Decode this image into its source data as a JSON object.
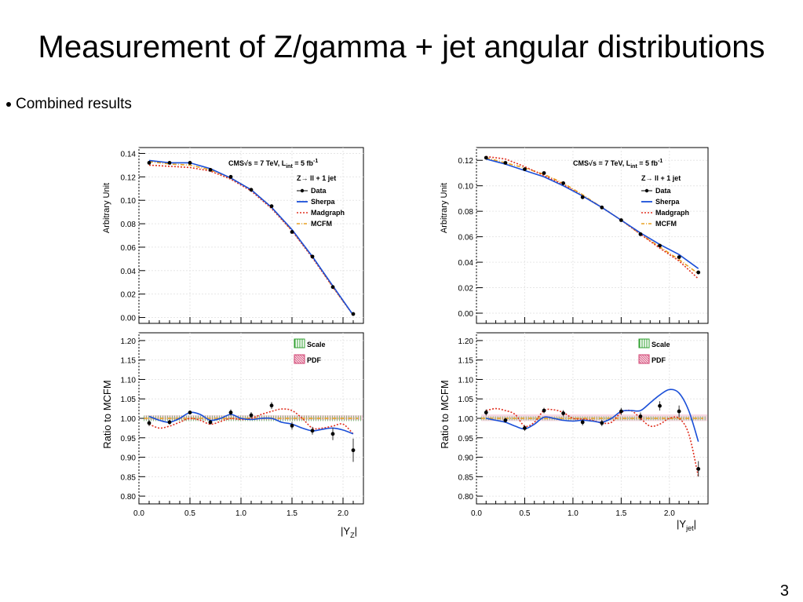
{
  "slide": {
    "title": "Measurement of Z/gamma + jet angular distributions",
    "bullet": "Combined results",
    "page_number": "3"
  },
  "colors": {
    "data": "#000000",
    "sherpa": "#1a4fd8",
    "madgraph": "#e03020",
    "mcfm": "#e8a020",
    "scale_band": "#30a030",
    "pdf_band": "#d04070"
  },
  "chart_data": [
    {
      "type": "line",
      "panel": "left",
      "cms_label": "CMS√s = 7 TeV, L",
      "lumi_sub": "int",
      "lumi_value": " = 5 fb",
      "lumi_sup": "-1",
      "process_label": "Z→ ll + 1 jet",
      "xlabel_main": "|Y",
      "xlabel_sub": "Z",
      "xlabel_end": "|",
      "top": {
        "ylabel": "Arbitrary Unit",
        "xlim": [
          0,
          2.2
        ],
        "ylim": [
          -0.005,
          0.145
        ],
        "yticks": [
          "0.00",
          "0.02",
          "0.04",
          "0.06",
          "0.08",
          "0.10",
          "0.12",
          "0.14"
        ],
        "legend": [
          "Data",
          "Sherpa",
          "Madgraph",
          "MCFM"
        ],
        "data": {
          "x": [
            0.1,
            0.3,
            0.5,
            0.7,
            0.9,
            1.1,
            1.3,
            1.5,
            1.7,
            1.9,
            2.1
          ],
          "y": [
            0.132,
            0.132,
            0.132,
            0.126,
            0.12,
            0.109,
            0.095,
            0.073,
            0.052,
            0.026,
            0.003
          ]
        },
        "sherpa": {
          "x": [
            0.1,
            0.3,
            0.5,
            0.7,
            0.9,
            1.1,
            1.3,
            1.5,
            1.7,
            1.9,
            2.1
          ],
          "y": [
            0.134,
            0.132,
            0.132,
            0.127,
            0.119,
            0.109,
            0.094,
            0.075,
            0.052,
            0.027,
            0.002
          ]
        },
        "madgraph": {
          "x": [
            0.1,
            0.3,
            0.5,
            0.7,
            0.9,
            1.1,
            1.3,
            1.5,
            1.7,
            1.9,
            2.1
          ],
          "y": [
            0.13,
            0.129,
            0.128,
            0.125,
            0.118,
            0.108,
            0.093,
            0.074,
            0.051,
            0.026,
            0.002
          ]
        },
        "mcfm": {
          "x": [
            0.1,
            0.3,
            0.5,
            0.7,
            0.9,
            1.1,
            1.3,
            1.5,
            1.7,
            1.9,
            2.1
          ],
          "y": [
            0.133,
            0.131,
            0.13,
            0.126,
            0.119,
            0.109,
            0.094,
            0.074,
            0.052,
            0.026,
            0.002
          ]
        }
      },
      "bottom": {
        "ylabel": "Ratio to MCFM",
        "xlim": [
          0,
          2.2
        ],
        "ylim": [
          0.78,
          1.22
        ],
        "yticks": [
          "0.80",
          "0.85",
          "0.90",
          "0.95",
          "1.00",
          "1.05",
          "1.10",
          "1.15",
          "1.20"
        ],
        "xticks": [
          "0.0",
          "0.5",
          "1.0",
          "1.5",
          "2.0"
        ],
        "band_legend": [
          "Scale",
          "PDF"
        ],
        "data": {
          "x": [
            0.1,
            0.3,
            0.5,
            0.7,
            0.9,
            1.1,
            1.3,
            1.5,
            1.7,
            1.9,
            2.1
          ],
          "y": [
            0.988,
            0.99,
            1.015,
            0.99,
            1.015,
            1.008,
            1.033,
            0.981,
            0.968,
            0.96,
            0.918
          ],
          "err": [
            0.008,
            0.006,
            0.005,
            0.006,
            0.008,
            0.008,
            0.009,
            0.01,
            0.01,
            0.016,
            0.03
          ]
        },
        "sherpa": {
          "x": [
            0.1,
            0.2,
            0.3,
            0.4,
            0.5,
            0.6,
            0.7,
            0.8,
            0.9,
            1.0,
            1.1,
            1.2,
            1.3,
            1.4,
            1.5,
            1.6,
            1.7,
            1.8,
            1.9,
            2.0,
            2.1
          ],
          "y": [
            1.005,
            0.995,
            0.99,
            1.0,
            1.015,
            1.01,
            0.995,
            1.0,
            1.01,
            1.0,
            0.997,
            1.0,
            1.0,
            0.99,
            0.985,
            0.975,
            0.968,
            0.972,
            0.975,
            0.97,
            0.96
          ]
        },
        "madgraph": {
          "x": [
            0.1,
            0.2,
            0.3,
            0.4,
            0.5,
            0.6,
            0.7,
            0.8,
            0.9,
            1.0,
            1.1,
            1.2,
            1.3,
            1.4,
            1.5,
            1.6,
            1.7,
            1.8,
            1.9,
            2.0,
            2.1
          ],
          "y": [
            0.985,
            0.975,
            0.98,
            0.99,
            1.0,
            0.995,
            0.985,
            0.992,
            1.0,
            0.997,
            1.0,
            1.01,
            1.018,
            1.024,
            1.02,
            1.0,
            0.975,
            0.975,
            0.98,
            0.985,
            0.96
          ]
        },
        "mcfm": {
          "x": [
            0.05,
            2.15
          ],
          "y": [
            1.0,
            1.0
          ]
        },
        "scale_band": [
          0.993,
          1.007
        ],
        "pdf_band": [
          0.995,
          1.008
        ]
      }
    },
    {
      "type": "line",
      "panel": "right",
      "cms_label": "CMS√s = 7 TeV, L",
      "lumi_sub": "int",
      "lumi_value": " = 5 fb",
      "lumi_sup": "-1",
      "process_label": "Z→ ll + 1 jet",
      "xlabel_main": "|Y",
      "xlabel_sub": "jet",
      "xlabel_end": "|",
      "top": {
        "ylabel": "Arbitrary Unit",
        "xlim": [
          0,
          2.4
        ],
        "ylim": [
          -0.008,
          0.13
        ],
        "yticks": [
          "0.00",
          "0.02",
          "0.04",
          "0.06",
          "0.08",
          "0.10",
          "0.12"
        ],
        "legend": [
          "Data",
          "Sherpa",
          "Madgraph",
          "MCFM"
        ],
        "data": {
          "x": [
            0.1,
            0.3,
            0.5,
            0.7,
            0.9,
            1.1,
            1.3,
            1.5,
            1.7,
            1.9,
            2.1,
            2.3
          ],
          "y": [
            0.122,
            0.118,
            0.113,
            0.11,
            0.102,
            0.091,
            0.083,
            0.073,
            0.062,
            0.053,
            0.044,
            0.032
          ]
        },
        "sherpa": {
          "x": [
            0.1,
            0.3,
            0.5,
            0.7,
            0.9,
            1.1,
            1.3,
            1.5,
            1.7,
            1.9,
            2.1,
            2.3
          ],
          "y": [
            0.121,
            0.117,
            0.112,
            0.107,
            0.1,
            0.092,
            0.083,
            0.073,
            0.063,
            0.054,
            0.046,
            0.035
          ]
        },
        "madgraph": {
          "x": [
            0.1,
            0.3,
            0.5,
            0.7,
            0.9,
            1.1,
            1.3,
            1.5,
            1.7,
            1.9,
            2.1,
            2.3
          ],
          "y": [
            0.123,
            0.121,
            0.115,
            0.108,
            0.101,
            0.092,
            0.083,
            0.073,
            0.062,
            0.051,
            0.041,
            0.027
          ]
        },
        "mcfm": {
          "x": [
            0.1,
            0.3,
            0.5,
            0.7,
            0.9,
            1.1,
            1.3,
            1.5,
            1.7,
            1.9,
            2.1,
            2.3
          ],
          "y": [
            0.122,
            0.118,
            0.114,
            0.109,
            0.102,
            0.093,
            0.083,
            0.073,
            0.062,
            0.052,
            0.042,
            0.031
          ]
        }
      },
      "bottom": {
        "ylabel": "Ratio to MCFM",
        "xlim": [
          0,
          2.4
        ],
        "ylim": [
          0.78,
          1.22
        ],
        "yticks": [
          "0.80",
          "0.85",
          "0.90",
          "0.95",
          "1.00",
          "1.05",
          "1.10",
          "1.15",
          "1.20"
        ],
        "xticks": [
          "0.0",
          "0.5",
          "1.0",
          "1.5",
          "2.0"
        ],
        "band_legend": [
          "Scale",
          "PDF"
        ],
        "data": {
          "x": [
            0.1,
            0.3,
            0.5,
            0.7,
            0.9,
            1.1,
            1.3,
            1.5,
            1.7,
            1.9,
            2.1,
            2.3
          ],
          "y": [
            1.015,
            0.995,
            0.975,
            1.02,
            1.013,
            0.99,
            0.988,
            1.018,
            1.005,
            1.032,
            1.018,
            0.87
          ],
          "err": [
            0.008,
            0.006,
            0.007,
            0.007,
            0.008,
            0.008,
            0.008,
            0.009,
            0.01,
            0.012,
            0.015,
            0.02
          ]
        },
        "sherpa": {
          "x": [
            0.1,
            0.2,
            0.3,
            0.4,
            0.5,
            0.6,
            0.7,
            0.8,
            0.9,
            1.0,
            1.1,
            1.2,
            1.3,
            1.4,
            1.5,
            1.6,
            1.7,
            1.8,
            1.9,
            2.0,
            2.1,
            2.2,
            2.3
          ],
          "y": [
            1.0,
            0.995,
            0.99,
            0.98,
            0.973,
            0.985,
            1.003,
            1.0,
            0.995,
            0.993,
            0.995,
            0.993,
            0.99,
            1.0,
            1.018,
            1.02,
            1.02,
            1.04,
            1.06,
            1.074,
            1.065,
            1.02,
            0.94
          ]
        },
        "madgraph": {
          "x": [
            0.1,
            0.2,
            0.3,
            0.4,
            0.5,
            0.6,
            0.7,
            0.8,
            0.9,
            1.0,
            1.1,
            1.2,
            1.3,
            1.4,
            1.5,
            1.6,
            1.7,
            1.8,
            1.9,
            2.0,
            2.1,
            2.2,
            2.3
          ],
          "y": [
            1.02,
            1.025,
            1.02,
            1.01,
            0.98,
            0.99,
            1.02,
            1.022,
            1.015,
            1.0,
            0.998,
            0.995,
            0.988,
            0.99,
            1.015,
            1.02,
            1.0,
            0.98,
            0.985,
            1.0,
            1.0,
            0.96,
            0.85
          ]
        },
        "mcfm": {
          "x": [
            0.05,
            2.35
          ],
          "y": [
            1.0,
            1.0
          ]
        },
        "scale_band": [
          0.995,
          1.005
        ],
        "pdf_band": [
          0.993,
          1.01
        ]
      }
    }
  ]
}
